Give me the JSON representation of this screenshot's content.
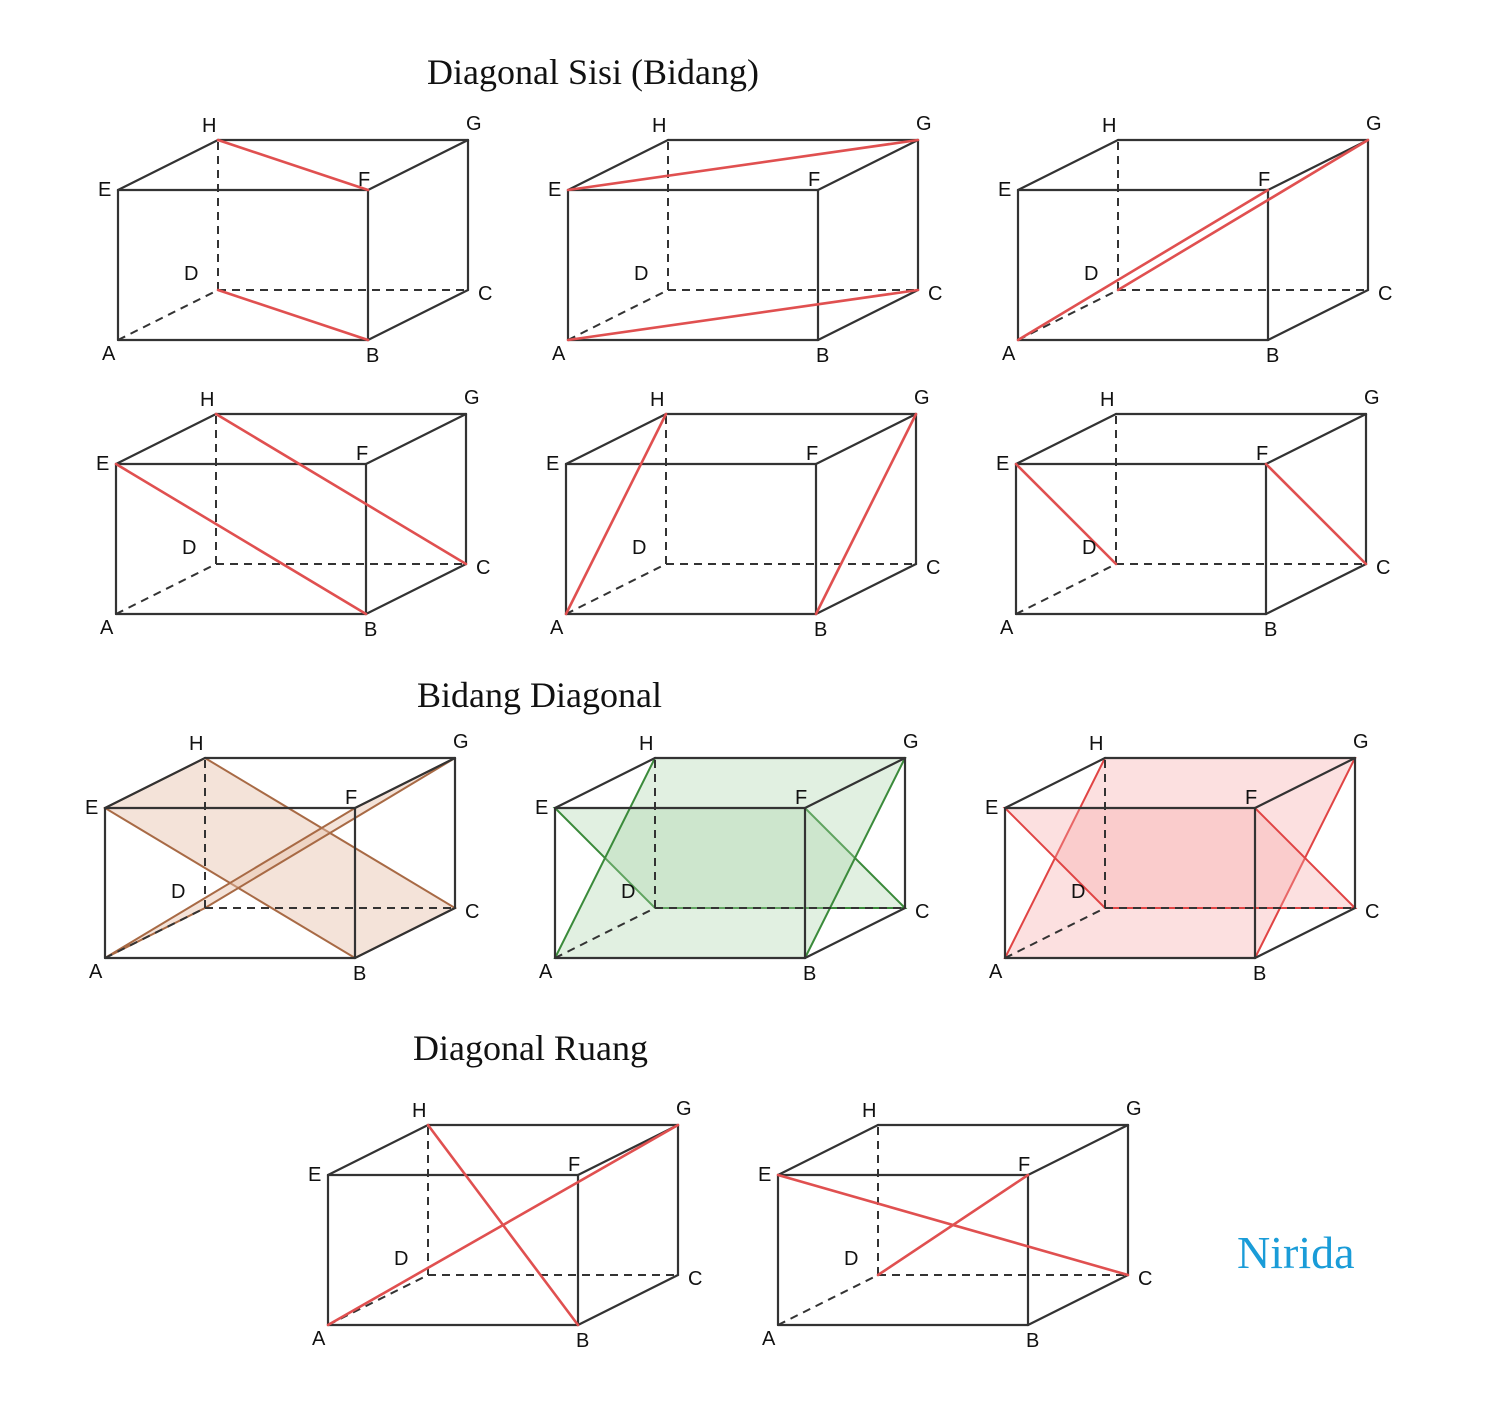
{
  "sections": {
    "side_diagonal_title": "Diagonal Sisi (Bidang)",
    "diagonal_plane_title": "Bidang Diagonal",
    "space_diagonal_title": "Diagonal Ruang"
  },
  "watermark": {
    "text": "Nirida",
    "color": "#1a9cd8"
  },
  "colors": {
    "edge": "#333333",
    "red": "#e05050",
    "brown_stroke": "#a86a45",
    "brown_fill": "#e6c2aa",
    "green_stroke": "#3a8a3a",
    "green_fill": "#a9d3a9",
    "pink_stroke": "#e04444",
    "pink_fill": "#f6a7a7"
  },
  "vertex_labels": [
    "A",
    "B",
    "C",
    "D",
    "E",
    "F",
    "G",
    "H"
  ],
  "cuboids": [
    {
      "name": "side-diagonal-cuboid-1",
      "lines": [
        [
          "H",
          "F"
        ],
        [
          "D",
          "B"
        ]
      ]
    },
    {
      "name": "side-diagonal-cuboid-2",
      "lines": [
        [
          "E",
          "G"
        ],
        [
          "A",
          "C"
        ]
      ]
    },
    {
      "name": "side-diagonal-cuboid-3",
      "lines": [
        [
          "A",
          "F"
        ],
        [
          "D",
          "G"
        ]
      ]
    },
    {
      "name": "side-diagonal-cuboid-4",
      "lines": [
        [
          "E",
          "B"
        ],
        [
          "H",
          "C"
        ]
      ]
    },
    {
      "name": "side-diagonal-cuboid-5",
      "lines": [
        [
          "A",
          "H"
        ],
        [
          "B",
          "G"
        ]
      ]
    },
    {
      "name": "side-diagonal-cuboid-6",
      "lines": [
        [
          "E",
          "D"
        ],
        [
          "F",
          "C"
        ]
      ]
    },
    {
      "name": "diagonal-plane-cuboid-1",
      "planes": [
        [
          "E",
          "H",
          "C",
          "B"
        ],
        [
          "A",
          "D",
          "G",
          "F"
        ]
      ]
    },
    {
      "name": "diagonal-plane-cuboid-2",
      "planes": [
        [
          "E",
          "F",
          "C",
          "D"
        ],
        [
          "A",
          "B",
          "G",
          "H"
        ]
      ]
    },
    {
      "name": "diagonal-plane-cuboid-3",
      "planes": [
        [
          "A",
          "B",
          "G",
          "H"
        ],
        [
          "E",
          "F",
          "C",
          "D"
        ]
      ]
    },
    {
      "name": "space-diagonal-cuboid-1",
      "lines": [
        [
          "A",
          "G"
        ],
        [
          "H",
          "B"
        ]
      ]
    },
    {
      "name": "space-diagonal-cuboid-2",
      "lines": [
        [
          "E",
          "C"
        ],
        [
          "D",
          "F"
        ]
      ]
    }
  ]
}
